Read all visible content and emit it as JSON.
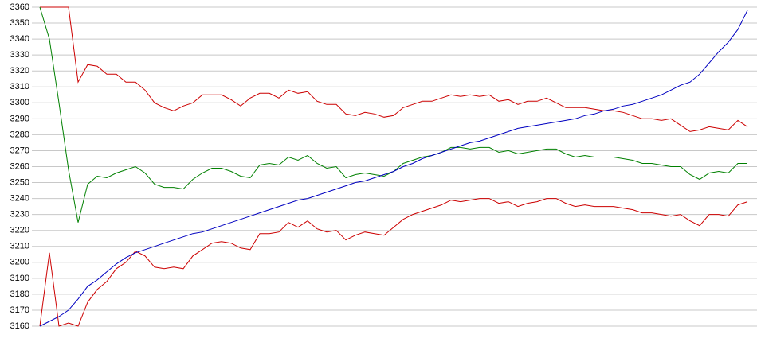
{
  "chart_data": {
    "type": "line",
    "categories": [
      null,
      null,
      null,
      null,
      null,
      null,
      null,
      null,
      null,
      null,
      null,
      null,
      null,
      null,
      null,
      null,
      null,
      null,
      null,
      null,
      null,
      null,
      null,
      null,
      null,
      null,
      null,
      null,
      null,
      null,
      null,
      null,
      null,
      null,
      null,
      null,
      null,
      null,
      null,
      null,
      null,
      null,
      null,
      null,
      null,
      null,
      null,
      null,
      null,
      null,
      null,
      null,
      null,
      null,
      null,
      null,
      null,
      null,
      null,
      null,
      null,
      null,
      null,
      null,
      null,
      null,
      null,
      null,
      null,
      null,
      null,
      null,
      null,
      null,
      null
    ],
    "series": [
      {
        "color": "#cc0000",
        "values": [
          3360,
          3360,
          3360,
          3360,
          3313,
          3324,
          3323,
          3318,
          3318,
          3313,
          3313,
          3308,
          3300,
          3297,
          3295,
          3298,
          3300,
          3305,
          3305,
          3305,
          3302,
          3298,
          3303,
          3306,
          3306,
          3303,
          3308,
          3306,
          3307,
          3301,
          3299,
          3299,
          3293,
          3292,
          3294,
          3293,
          3291,
          3292,
          3297,
          3299,
          3301,
          3301,
          3303,
          3305,
          3304,
          3305,
          3304,
          3305,
          3301,
          3302,
          3299,
          3301,
          3301,
          3303,
          3300,
          3297,
          3297,
          3297,
          3296,
          3295,
          3295,
          3294,
          3292,
          3290,
          3290,
          3289,
          3290,
          3286,
          3282,
          3283,
          3285,
          3284,
          3283,
          3289,
          3285
        ]
      },
      {
        "color": "#008000",
        "values": [
          3360,
          3340,
          3300,
          3258,
          3225,
          3249,
          3254,
          3253,
          3256,
          3258,
          3260,
          3256,
          3249,
          3247,
          3247,
          3246,
          3252,
          3256,
          3259,
          3259,
          3257,
          3254,
          3253,
          3261,
          3262,
          3261,
          3266,
          3264,
          3267,
          3262,
          3259,
          3260,
          3253,
          3255,
          3256,
          3255,
          3254,
          3257,
          3262,
          3264,
          3266,
          3267,
          3269,
          3272,
          3272,
          3271,
          3272,
          3272,
          3269,
          3270,
          3268,
          3269,
          3270,
          3271,
          3271,
          3268,
          3266,
          3267,
          3266,
          3266,
          3266,
          3265,
          3264,
          3262,
          3262,
          3261,
          3260,
          3260,
          3255,
          3252,
          3256,
          3257,
          3256,
          3262,
          3262
        ]
      },
      {
        "color": "#cc0000",
        "values": [
          3160,
          3206,
          3160,
          3162,
          3160,
          3175,
          3183,
          3188,
          3196,
          3200,
          3207,
          3204,
          3197,
          3196,
          3197,
          3196,
          3204,
          3208,
          3212,
          3213,
          3212,
          3209,
          3208,
          3218,
          3218,
          3219,
          3225,
          3222,
          3226,
          3221,
          3219,
          3220,
          3214,
          3217,
          3219,
          3218,
          3217,
          3222,
          3227,
          3230,
          3232,
          3234,
          3236,
          3239,
          3238,
          3239,
          3240,
          3240,
          3237,
          3238,
          3235,
          3237,
          3238,
          3240,
          3240,
          3237,
          3235,
          3236,
          3235,
          3235,
          3235,
          3234,
          3233,
          3231,
          3231,
          3230,
          3229,
          3230,
          3226,
          3223,
          3230,
          3230,
          3229,
          3236,
          3238
        ]
      },
      {
        "color": "#0000c0",
        "values": [
          3160,
          3163,
          3166,
          3170,
          3177,
          3185,
          3189,
          3194,
          3199,
          3203,
          3206,
          3208,
          3210,
          3212,
          3214,
          3216,
          3218,
          3219,
          3221,
          3223,
          3225,
          3227,
          3229,
          3231,
          3233,
          3235,
          3237,
          3239,
          3240,
          3242,
          3244,
          3246,
          3248,
          3250,
          3251,
          3253,
          3255,
          3257,
          3260,
          3262,
          3265,
          3267,
          3269,
          3271,
          3273,
          3275,
          3276,
          3278,
          3280,
          3282,
          3284,
          3285,
          3286,
          3287,
          3288,
          3289,
          3290,
          3292,
          3293,
          3295,
          3296,
          3298,
          3299,
          3301,
          3303,
          3305,
          3308,
          3311,
          3313,
          3318,
          3325,
          3332,
          3338,
          3346,
          3358
        ]
      }
    ],
    "ylim": [
      3160,
      3360
    ],
    "yticks": [
      3160,
      3170,
      3180,
      3190,
      3200,
      3210,
      3220,
      3230,
      3240,
      3250,
      3260,
      3270,
      3280,
      3290,
      3300,
      3310,
      3320,
      3330,
      3340,
      3350,
      3360
    ],
    "grid": true
  }
}
